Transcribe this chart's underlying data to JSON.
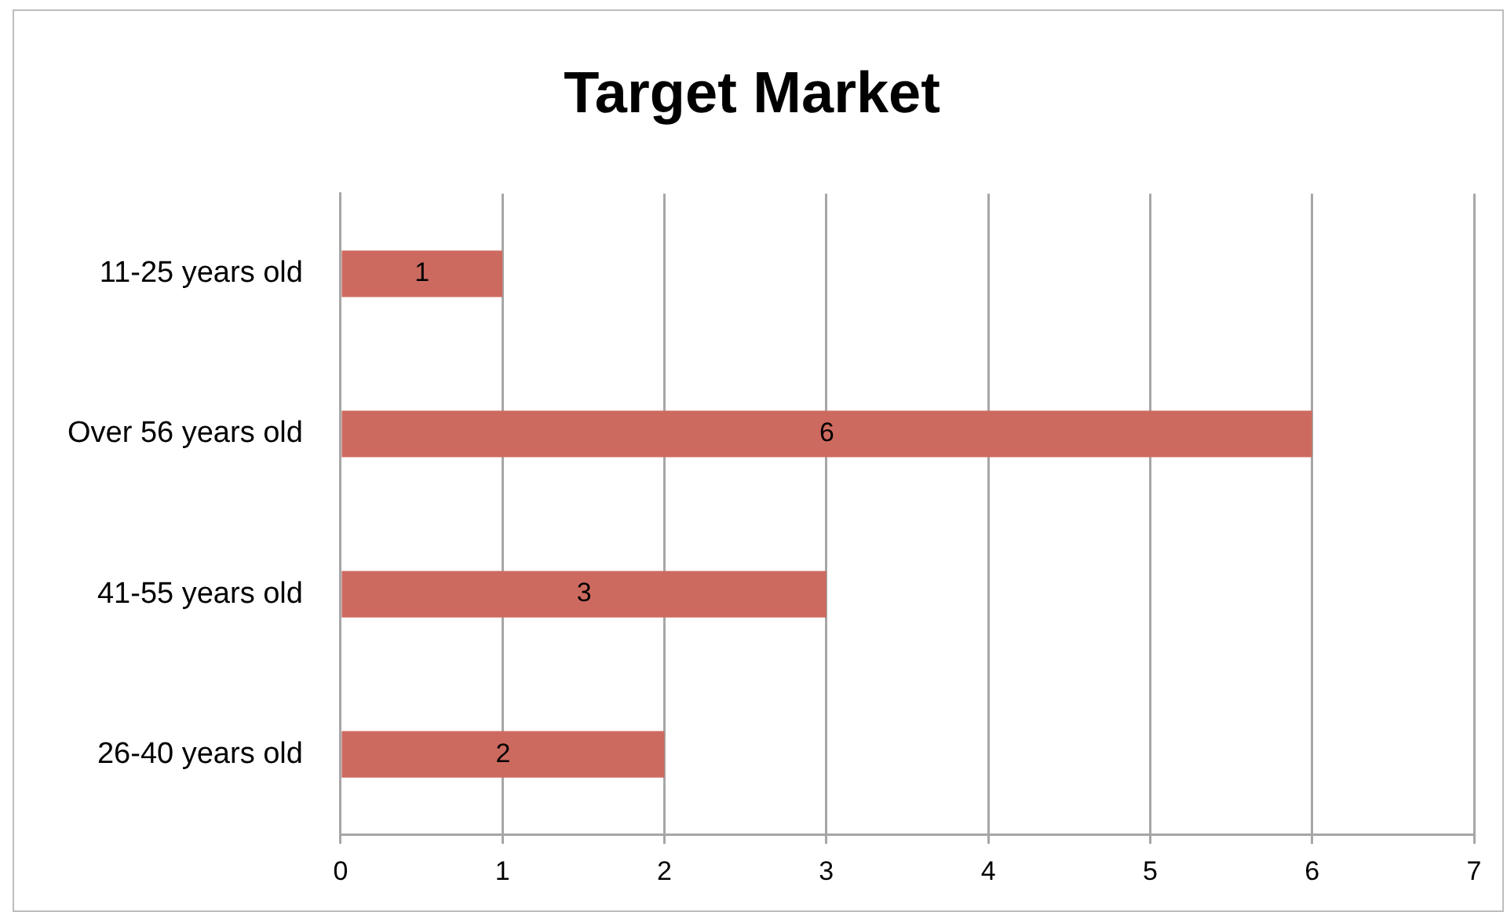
{
  "chart_data": {
    "type": "bar",
    "title": "Target Market",
    "orientation": "horizontal",
    "categories": [
      "11-25 years old",
      "Over 56 years old",
      "41-55 years old",
      "26-40 years old"
    ],
    "values": [
      1,
      6,
      3,
      2
    ],
    "color": "#cd6a5f",
    "xlim": [
      0,
      7
    ],
    "xticks": [
      0,
      1,
      2,
      3,
      4,
      5,
      6,
      7
    ],
    "grid": "x",
    "data_labels": true
  }
}
